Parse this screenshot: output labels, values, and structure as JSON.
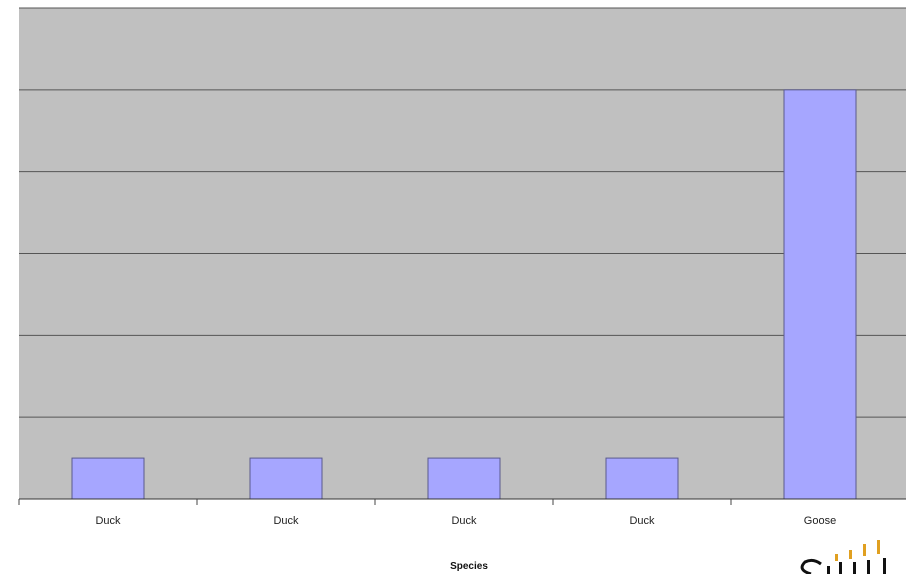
{
  "chart_data": {
    "type": "bar",
    "categories": [
      "Duck",
      "Duck",
      "Duck",
      "Duck",
      "Goose"
    ],
    "values": [
      0.5,
      0.5,
      0.5,
      0.5,
      5
    ],
    "xlabel": "Species",
    "ylabel": "",
    "ylim": [
      0,
      6
    ],
    "grid": true,
    "legend": "none",
    "colors": {
      "plot_background": "#c0c0c0",
      "bar_fill": "#a6a6ff",
      "bar_stroke": "#5a5a8c",
      "gridline": "#555555"
    }
  }
}
